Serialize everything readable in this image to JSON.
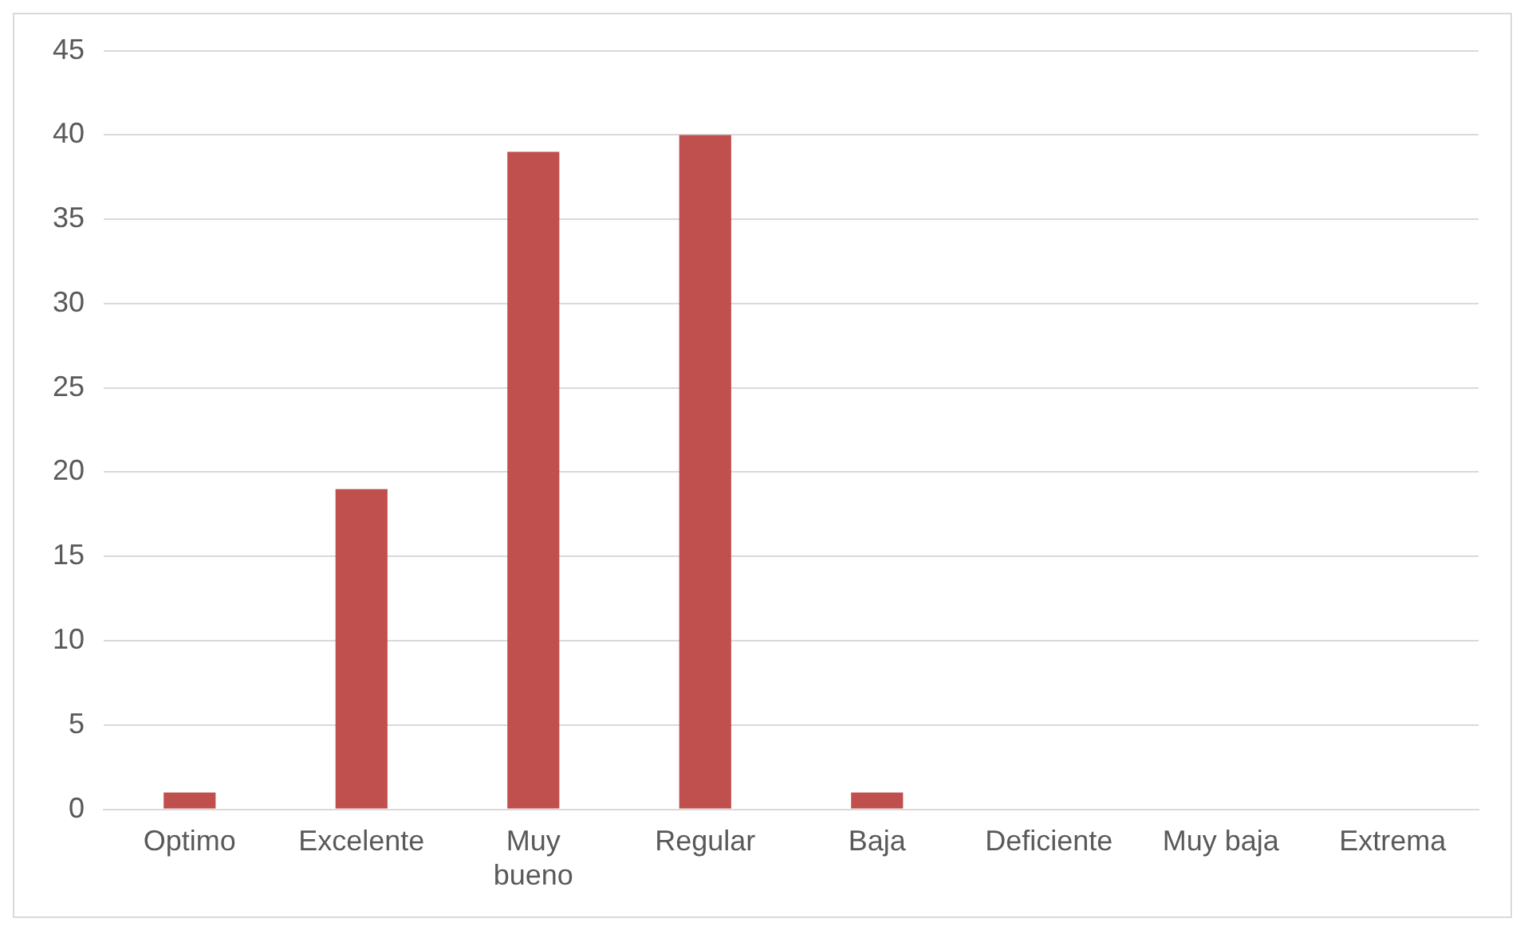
{
  "chart_data": {
    "type": "bar",
    "categories": [
      "Optimo",
      "Excelente",
      "Muy bueno",
      "Regular",
      "Baja",
      "Deficiente",
      "Muy baja",
      "Extrema"
    ],
    "values": [
      1,
      19,
      39,
      40,
      1,
      0,
      0,
      0
    ],
    "color": "#c0504d",
    "ylim": [
      0,
      45
    ],
    "yticks": [
      0,
      5,
      10,
      15,
      20,
      25,
      30,
      35,
      40,
      45
    ],
    "grid": "y",
    "legend": false
  }
}
